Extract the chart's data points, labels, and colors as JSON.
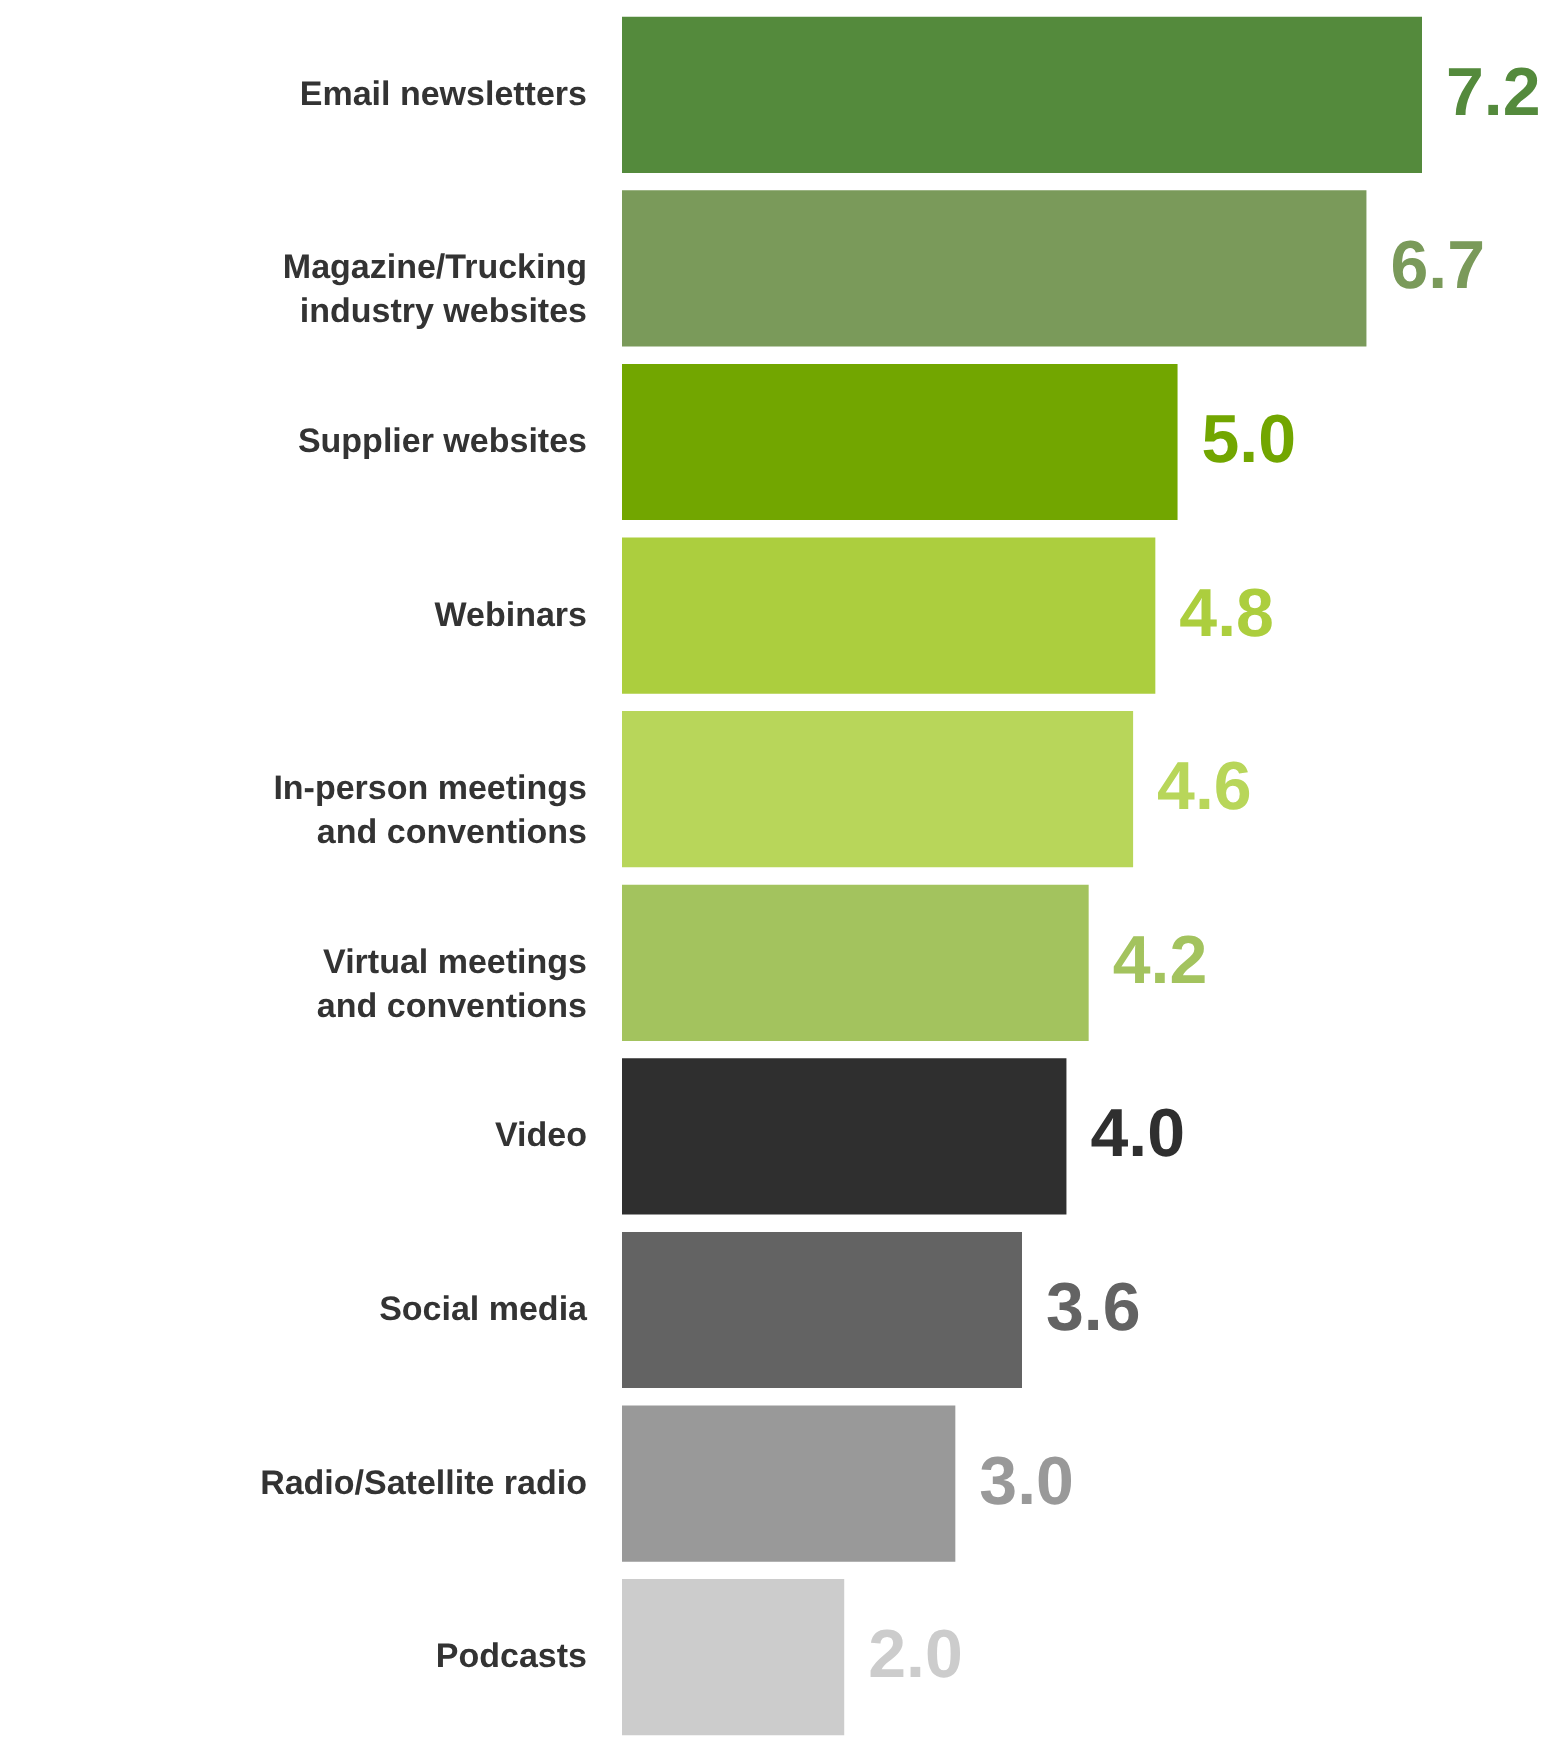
{
  "chart_data": {
    "type": "bar",
    "orientation": "horizontal",
    "categories": [
      "Email newsletters",
      "Magazine/Trucking\nindustry websites",
      "Supplier websites",
      "Webinars",
      "In-person meetings\nand conventions",
      "Virtual meetings\nand conventions",
      "Video",
      "Social media",
      "Radio/Satellite radio",
      "Podcasts"
    ],
    "values": [
      7.2,
      6.7,
      5.0,
      4.8,
      4.6,
      4.2,
      4.0,
      3.6,
      3.0,
      2.0
    ],
    "colors": [
      "#548a3c",
      "#7a9a5a",
      "#72a600",
      "#acce3e",
      "#b8d65a",
      "#a3c35e",
      "#2f2f2f",
      "#636363",
      "#999999",
      "#cccccc"
    ],
    "value_labels": [
      "7.2",
      "6.7",
      "5.0",
      "4.8",
      "4.6",
      "4.2",
      "4.0",
      "3.6",
      "3.0",
      "2.0"
    ]
  }
}
